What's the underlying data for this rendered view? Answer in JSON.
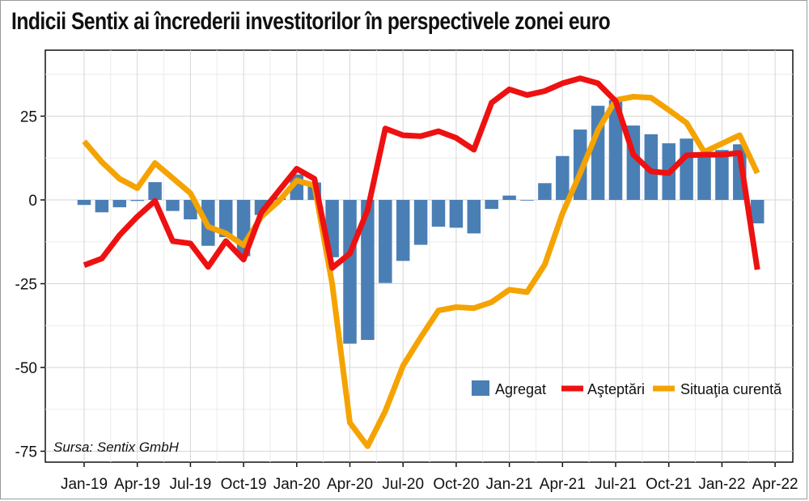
{
  "chart_data": {
    "type": "bar+line",
    "title": "Indicii Sentix ai încrederii investitorilor în perspectivele zonei euro",
    "source": "Sursa: Sentix GmbH",
    "xlabel": "",
    "ylabel": "",
    "ylim": [
      -75,
      40
    ],
    "yticks": [
      -75,
      -50,
      -25,
      0,
      25
    ],
    "grid": true,
    "legend_position": "bottom-right",
    "months": [
      "2019-01",
      "2019-02",
      "2019-03",
      "2019-04",
      "2019-05",
      "2019-06",
      "2019-07",
      "2019-08",
      "2019-09",
      "2019-10",
      "2019-11",
      "2019-12",
      "2020-01",
      "2020-02",
      "2020-03",
      "2020-04",
      "2020-05",
      "2020-06",
      "2020-07",
      "2020-08",
      "2020-09",
      "2020-10",
      "2020-11",
      "2020-12",
      "2021-01",
      "2021-02",
      "2021-03",
      "2021-04",
      "2021-05",
      "2021-06",
      "2021-07",
      "2021-08",
      "2021-09",
      "2021-10",
      "2021-11",
      "2021-12",
      "2022-01",
      "2022-02",
      "2022-03"
    ],
    "x_ticks": [
      "Jan-19",
      "Apr-19",
      "Jul-19",
      "Oct-19",
      "Jan-20",
      "Apr-20",
      "Jul-20",
      "Oct-20",
      "Jan-21",
      "Apr-21",
      "Jul-21",
      "Oct-21",
      "Jan-22",
      "Apr-22"
    ],
    "series": [
      {
        "name": "Agregat",
        "kind": "bar",
        "color": "#4a7fb5",
        "values": [
          -1.5,
          -3.7,
          -2.2,
          -0.3,
          5.3,
          -3.3,
          -5.8,
          -13.7,
          -11.1,
          -16.8,
          -4.5,
          0.7,
          7.6,
          5.2,
          -17.1,
          -42.9,
          -41.8,
          -24.8,
          -18.2,
          -13.4,
          -8.0,
          -8.3,
          -10.0,
          -2.7,
          1.3,
          -0.2,
          5.0,
          13.1,
          21.0,
          28.1,
          29.8,
          22.2,
          19.6,
          16.9,
          18.3,
          13.5,
          14.9,
          16.6,
          -7.0
        ]
      },
      {
        "name": "Aşteptări",
        "kind": "line",
        "color": "#ee1111",
        "values": [
          -19.5,
          -17.5,
          -10.5,
          -5.0,
          -0.3,
          -12.3,
          -13.0,
          -20.0,
          -12.3,
          -17.8,
          -3.8,
          2.8,
          9.3,
          6.3,
          -20.3,
          -16.0,
          -3.0,
          21.3,
          19.3,
          19.0,
          20.5,
          18.5,
          15.0,
          29.0,
          33.0,
          31.3,
          32.5,
          34.8,
          36.3,
          34.8,
          29.5,
          13.5,
          8.5,
          8.0,
          13.3,
          13.5,
          13.5,
          14.0,
          -20.8
        ]
      },
      {
        "name": "Situaţia curentă",
        "kind": "line",
        "color": "#f5a300",
        "values": [
          17.5,
          11.3,
          6.3,
          3.5,
          11.0,
          6.5,
          2.0,
          -8.0,
          -10.0,
          -13.5,
          -5.0,
          -0.3,
          5.8,
          4.3,
          -25.0,
          -66.5,
          -73.5,
          -63.0,
          -49.5,
          -41.0,
          -33.0,
          -32.0,
          -32.3,
          -30.5,
          -26.8,
          -27.5,
          -19.3,
          -4.0,
          8.0,
          20.8,
          29.8,
          30.8,
          30.5,
          26.8,
          23.0,
          14.3,
          16.8,
          19.3,
          8.0
        ]
      }
    ]
  }
}
